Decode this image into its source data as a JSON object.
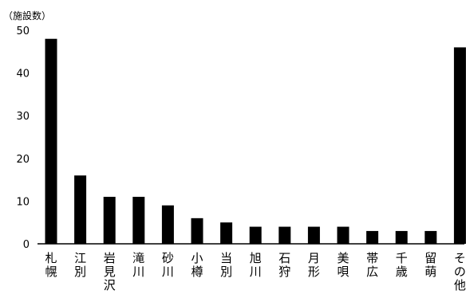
{
  "chart_data": {
    "type": "bar",
    "ylabel": "（施設数）",
    "ylim": [
      0,
      50
    ],
    "yticks": [
      0,
      10,
      20,
      30,
      40,
      50
    ],
    "grid": false,
    "legend": "none",
    "bar_color": "#000000",
    "categories": [
      "札幌",
      "江別",
      "岩見沢",
      "滝川",
      "砂川",
      "小樽",
      "当別",
      "旭川",
      "石狩",
      "月形",
      "美唄",
      "帯広",
      "千歳",
      "留萌",
      "その他"
    ],
    "values": [
      48,
      16,
      11,
      11,
      9,
      6,
      5,
      4,
      4,
      4,
      4,
      3,
      3,
      3,
      46
    ]
  }
}
